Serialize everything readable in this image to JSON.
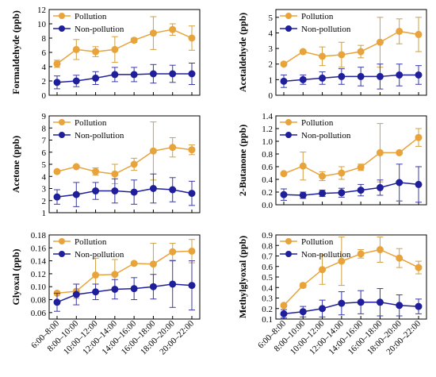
{
  "colors": {
    "pollution": "#e8a33a",
    "non_pollution": "#1f1f9c",
    "error_pollution": "#d2a040",
    "error_non_pollution": "#3a3aa8"
  },
  "chart_data": [
    {
      "type": "line",
      "ylabel": "Formaldehyde (ppb)",
      "ylim": [
        0,
        12
      ],
      "yticks": [
        0,
        2,
        4,
        6,
        8,
        10,
        12
      ],
      "legend": "top-left",
      "categories": [
        "6:00–8:00",
        "8:00–10:00",
        "10:00–12:00",
        "12:00–14:00",
        "14:00–16:00",
        "16:00–18:00",
        "18:00–20:00",
        "20:00–22:00"
      ],
      "series": [
        {
          "name": "Pollution",
          "values": [
            4.4,
            6.4,
            6.1,
            6.4,
            7.7,
            8.7,
            9.2,
            8.0
          ],
          "errors": [
            0.5,
            1.4,
            0.7,
            1.8,
            0.3,
            2.3,
            0.8,
            1.7
          ]
        },
        {
          "name": "Non-pollution",
          "values": [
            1.8,
            2.0,
            2.4,
            2.9,
            2.9,
            3.0,
            3.0,
            3.0
          ],
          "errors": [
            0.9,
            0.8,
            0.9,
            1.0,
            1.0,
            1.3,
            1.2,
            1.5
          ]
        }
      ]
    },
    {
      "type": "line",
      "ylabel": "Acetaldehyde (ppb)",
      "ylim": [
        0,
        5.5
      ],
      "yticks": [
        0,
        1,
        2,
        3,
        4,
        5
      ],
      "legend": "top-left",
      "categories": [
        "6:00–8:00",
        "8:00–10:00",
        "10:00–12:00",
        "12:00–14:00",
        "14:00–16:00",
        "16:00–18:00",
        "18:00–20:00",
        "20:00–22:00"
      ],
      "series": [
        {
          "name": "Pollution",
          "values": [
            2.0,
            2.8,
            2.5,
            2.6,
            2.8,
            3.4,
            4.1,
            3.9
          ],
          "errors": [
            0.1,
            0.1,
            0.6,
            0.8,
            0.4,
            1.6,
            0.8,
            1.1
          ]
        },
        {
          "name": "Non-pollution",
          "values": [
            0.9,
            1.0,
            1.1,
            1.2,
            1.2,
            1.2,
            1.3,
            1.3
          ],
          "errors": [
            0.4,
            0.3,
            0.4,
            0.5,
            0.6,
            0.8,
            0.7,
            0.6
          ]
        }
      ]
    },
    {
      "type": "line",
      "ylabel": "Acetone (ppb)",
      "ylim": [
        1,
        9
      ],
      "yticks": [
        1,
        2,
        3,
        4,
        5,
        6,
        7,
        8,
        9
      ],
      "legend": "top-left",
      "categories": [
        "6:00–8:00",
        "8:00–10:00",
        "10:00–12:00",
        "12:00–14:00",
        "14:00–16:00",
        "16:00–18:00",
        "18:00–20:00",
        "20:00–22:00"
      ],
      "series": [
        {
          "name": "Pollution",
          "values": [
            4.4,
            4.8,
            4.4,
            4.2,
            5.0,
            6.1,
            6.4,
            6.2
          ],
          "errors": [
            0.1,
            0.1,
            0.3,
            0.8,
            0.5,
            2.4,
            0.8,
            0.4
          ]
        },
        {
          "name": "Non-pollution",
          "values": [
            2.3,
            2.5,
            2.8,
            2.8,
            2.7,
            3.0,
            2.9,
            2.6
          ],
          "errors": [
            0.6,
            1.0,
            0.7,
            1.0,
            1.0,
            1.2,
            1.0,
            1.0
          ]
        }
      ]
    },
    {
      "type": "line",
      "ylabel": "2-Butanone (ppb)",
      "ylim": [
        0,
        1.4
      ],
      "yticks": [
        0.0,
        0.2,
        0.4,
        0.6,
        0.8,
        1.0,
        1.2,
        1.4
      ],
      "legend": "top-left",
      "categories": [
        "6:00–8:00",
        "8:00–10:00",
        "10:00–12:00",
        "12:00–14:00",
        "14:00–16:00",
        "16:00–18:00",
        "18:00–20:00",
        "20:00–22:00"
      ],
      "series": [
        {
          "name": "Pollution",
          "values": [
            0.49,
            0.61,
            0.45,
            0.5,
            0.59,
            0.82,
            0.82,
            1.06
          ],
          "errors": [
            0.02,
            0.22,
            0.07,
            0.1,
            0.05,
            0.46,
            0.02,
            0.14
          ]
        },
        {
          "name": "Non-pollution",
          "values": [
            0.16,
            0.15,
            0.18,
            0.19,
            0.23,
            0.27,
            0.35,
            0.32
          ],
          "errors": [
            0.09,
            0.05,
            0.05,
            0.07,
            0.09,
            0.12,
            0.29,
            0.28
          ]
        }
      ]
    },
    {
      "type": "line",
      "ylabel": "Glyoxal (ppb)",
      "ylim": [
        0.05,
        0.18
      ],
      "yticks": [
        0.06,
        0.08,
        0.1,
        0.12,
        0.14,
        0.16,
        0.18
      ],
      "legend": "top-left",
      "categories": [
        "6:00–8:00",
        "8:00–10:00",
        "10:00–12:00",
        "12:00–14:00",
        "14:00–16:00",
        "16:00–18:00",
        "18:00–20:00",
        "20:00–22:00"
      ],
      "series": [
        {
          "name": "Pollution",
          "values": [
            0.09,
            0.093,
            0.118,
            0.119,
            0.136,
            0.135,
            0.154,
            0.155
          ],
          "errors": [
            0.002,
            0.011,
            0.026,
            0.023,
            0.002,
            0.032,
            0.013,
            0.018
          ]
        },
        {
          "name": "Non-pollution",
          "values": [
            0.076,
            0.088,
            0.092,
            0.096,
            0.097,
            0.1,
            0.104,
            0.102
          ],
          "errors": [
            0.014,
            0.016,
            0.012,
            0.015,
            0.017,
            0.019,
            0.036,
            0.038
          ]
        }
      ]
    },
    {
      "type": "line",
      "ylabel": "Methylglyoxal (ppb)",
      "ylim": [
        0.1,
        0.9
      ],
      "yticks": [
        0.1,
        0.2,
        0.3,
        0.4,
        0.5,
        0.6,
        0.7,
        0.8,
        0.9
      ],
      "legend": "top-left",
      "categories": [
        "6:00–8:00",
        "8:00–10:00",
        "10:00–12:00",
        "12:00–14:00",
        "14:00–16:00",
        "16:00–18:00",
        "18:00–20:00",
        "20:00–22:00"
      ],
      "series": [
        {
          "name": "Pollution",
          "values": [
            0.23,
            0.42,
            0.57,
            0.65,
            0.72,
            0.76,
            0.68,
            0.59
          ],
          "errors": [
            0.01,
            0.02,
            0.14,
            0.23,
            0.04,
            0.12,
            0.09,
            0.06
          ]
        },
        {
          "name": "Non-pollution",
          "values": [
            0.15,
            0.17,
            0.2,
            0.25,
            0.26,
            0.26,
            0.23,
            0.22
          ],
          "errors": [
            0.04,
            0.05,
            0.08,
            0.11,
            0.11,
            0.13,
            0.1,
            0.07
          ]
        }
      ]
    }
  ],
  "x_tick_labels": [
    "6:00–8:00",
    "8:00–10:00",
    "10:00–12:00",
    "12:00–14:00",
    "14:00–16:00",
    "16:00–18:00",
    "18:00–20:00",
    "20:00–22:00"
  ]
}
